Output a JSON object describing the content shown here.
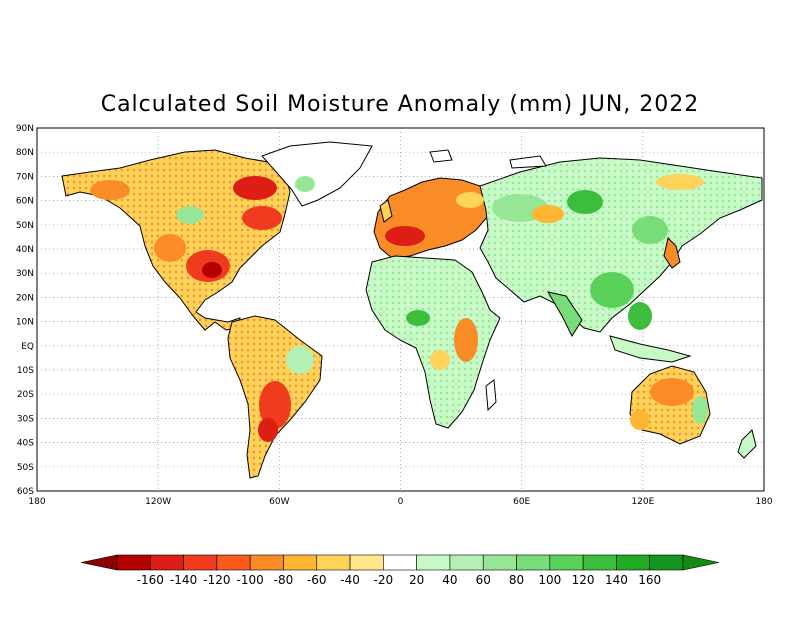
{
  "title": "Calculated Soil Moisture Anomaly (mm) JUN, 2022",
  "lat_labels": [
    "90N",
    "80N",
    "70N",
    "60N",
    "50N",
    "40N",
    "30N",
    "20N",
    "10N",
    "EQ",
    "10S",
    "20S",
    "30S",
    "40S",
    "50S",
    "60S"
  ],
  "lon_labels": [
    "180",
    "120W",
    "60W",
    "0",
    "60E",
    "120E",
    "180"
  ],
  "colorbar": {
    "labels": [
      "-160",
      "-140",
      "-120",
      "-100",
      "-80",
      "-60",
      "-40",
      "-20",
      "20",
      "40",
      "60",
      "80",
      "100",
      "120",
      "140",
      "160"
    ],
    "colors": [
      "#b40000",
      "#dc1e14",
      "#f03c1e",
      "#fa5a1e",
      "#fa8c28",
      "#ffb432",
      "#ffd25a",
      "#ffe68c",
      "#ffffff",
      "#c8fac8",
      "#b4f0b4",
      "#96e696",
      "#78dc78",
      "#5ad25a",
      "#3cbe3c",
      "#23aa23",
      "#14961e"
    ],
    "low_arrow_color": "#8c0000",
    "high_arrow_color": "#148c14"
  },
  "land_color": "#ffffff",
  "coast_color": "#000000"
}
